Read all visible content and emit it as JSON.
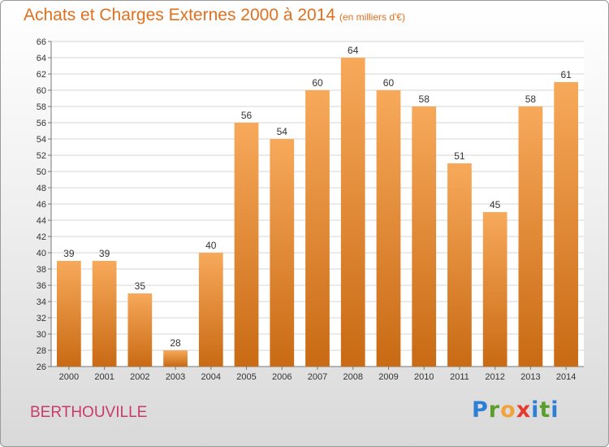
{
  "header": {
    "title": "Achats et Charges Externes 2000 à 2014",
    "subtitle": "(en milliers d'€)"
  },
  "footer": {
    "place": "BERTHOUVILLE",
    "logo_text": "Proxiti"
  },
  "colors": {
    "bar": "#f0923a",
    "bar_light": "#f7a95a",
    "bar_dark": "#c96a14",
    "title": "#e0701e",
    "place": "#c93a6c"
  },
  "chart_data": {
    "type": "bar",
    "title": "Achats et Charges Externes 2000 à 2014",
    "subtitle": "(en milliers d'€)",
    "categories": [
      "2000",
      "2001",
      "2002",
      "2003",
      "2004",
      "2005",
      "2006",
      "2007",
      "2008",
      "2009",
      "2010",
      "2011",
      "2012",
      "2013",
      "2014"
    ],
    "values": [
      39,
      39,
      35,
      28,
      40,
      56,
      54,
      60,
      64,
      60,
      58,
      51,
      45,
      58,
      61
    ],
    "ylim": [
      26,
      66
    ],
    "yticks": [
      26,
      28,
      30,
      32,
      34,
      36,
      38,
      40,
      42,
      44,
      46,
      48,
      50,
      52,
      54,
      56,
      58,
      60,
      62,
      64,
      66
    ],
    "grid": true,
    "data_labels": true
  }
}
